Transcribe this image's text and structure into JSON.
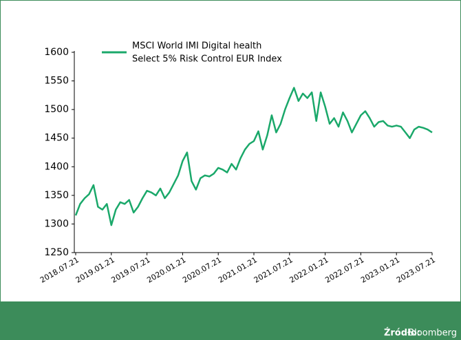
{
  "chart_data": {
    "type": "line",
    "legend_text": [
      "MSCI World IMI Digital health",
      "Select 5% Risk Control EUR Index"
    ],
    "source_label": "Źródło:",
    "source": "Bloomberg",
    "categories": [
      "2018.07.21",
      null,
      null,
      null,
      null,
      null,
      null,
      null,
      "2019.01.21",
      null,
      null,
      null,
      null,
      null,
      null,
      null,
      "2019.07.21",
      null,
      null,
      null,
      null,
      null,
      null,
      null,
      "2020.01.21",
      null,
      null,
      null,
      null,
      null,
      null,
      null,
      "2020.07.21",
      null,
      null,
      null,
      null,
      null,
      null,
      null,
      "2021.01.21",
      null,
      null,
      null,
      null,
      null,
      null,
      null,
      "2021.07.21",
      null,
      null,
      null,
      null,
      null,
      null,
      null,
      "2022.01.21",
      null,
      null,
      null,
      null,
      null,
      null,
      null,
      "2022.07.21",
      null,
      null,
      null,
      null,
      null,
      null,
      null,
      "2023.01.21",
      null,
      null,
      null,
      null,
      null,
      null,
      null,
      "2023.07.21"
    ],
    "series": [
      {
        "name": "MSCI World IMI Digital health Select 5% Risk Control EUR Index",
        "color": "#1aa86a",
        "values": [
          1315,
          1335,
          1345,
          1352,
          1368,
          1330,
          1325,
          1335,
          1298,
          1325,
          1338,
          1335,
          1342,
          1320,
          1330,
          1345,
          1358,
          1355,
          1350,
          1362,
          1345,
          1355,
          1370,
          1385,
          1410,
          1425,
          1375,
          1360,
          1380,
          1385,
          1383,
          1388,
          1398,
          1395,
          1390,
          1405,
          1395,
          1415,
          1430,
          1440,
          1445,
          1462,
          1430,
          1455,
          1490,
          1460,
          1475,
          1500,
          1520,
          1538,
          1515,
          1528,
          1520,
          1530,
          1480,
          1530,
          1505,
          1475,
          1485,
          1470,
          1495,
          1480,
          1460,
          1475,
          1490,
          1497,
          1485,
          1470,
          1478,
          1480,
          1472,
          1470,
          1472,
          1470,
          1460,
          1450,
          1465,
          1470,
          1468,
          1465,
          1460
        ]
      }
    ],
    "ylim": [
      1250,
      1600
    ],
    "yticks": [
      1250,
      1300,
      1350,
      1400,
      1450,
      1500,
      1550,
      1600
    ]
  }
}
